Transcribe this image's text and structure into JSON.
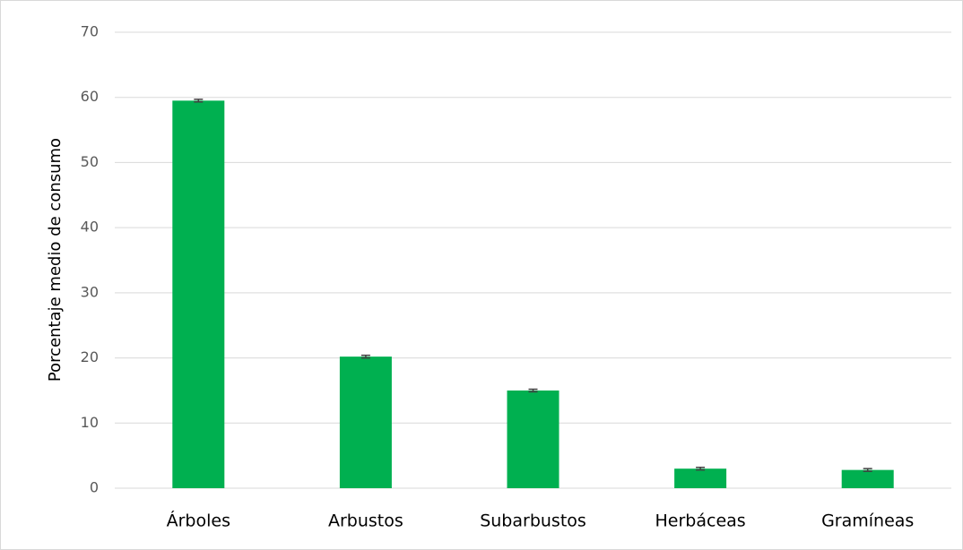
{
  "chart_data": {
    "type": "bar",
    "y_label": "Porcentaje medio de consumo",
    "categories": [
      "Árboles",
      "Arbustos",
      "Subarbustos",
      "Herbáceas",
      "Gramíneas"
    ],
    "values": [
      59.5,
      20.2,
      15.0,
      3.0,
      2.8
    ],
    "errors": [
      0.2,
      0.2,
      0.2,
      0.2,
      0.2
    ],
    "color": "#00b050",
    "error_color": "#404040",
    "ylim": [
      0,
      70
    ],
    "yticks": [
      0,
      10,
      20,
      30,
      40,
      50,
      60,
      70
    ],
    "grid": true
  }
}
